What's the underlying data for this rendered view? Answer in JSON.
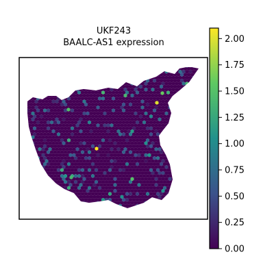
{
  "chart_data": {
    "type": "scatter",
    "title": "UKF243",
    "subtitle": "BAALC-AS1 expression",
    "xlabel": "",
    "ylabel": "",
    "grid": false,
    "axis_ticks_visible": false,
    "marker": "hexagon",
    "colormap": [
      "#440154",
      "#3b528b",
      "#21918c",
      "#5ec962",
      "#fde725"
    ],
    "colorbar": {
      "range": [
        0,
        2.1
      ],
      "ticks": [
        "0.00",
        "0.25",
        "0.50",
        "0.75",
        "1.00",
        "1.25",
        "1.50",
        "1.75",
        "2.00"
      ],
      "tick_values": [
        0,
        0.25,
        0.5,
        0.75,
        1.0,
        1.25,
        1.5,
        1.75,
        2.0
      ]
    },
    "notable_spots": [
      {
        "expression": 2.1,
        "location": "center of tissue"
      },
      {
        "expression": 2.0,
        "location": "upper right cluster"
      },
      {
        "expression": 1.6,
        "location": "upper right cluster"
      },
      {
        "expression": 1.5,
        "location": "upper left"
      },
      {
        "expression": 1.4,
        "location": "lower left"
      }
    ]
  }
}
